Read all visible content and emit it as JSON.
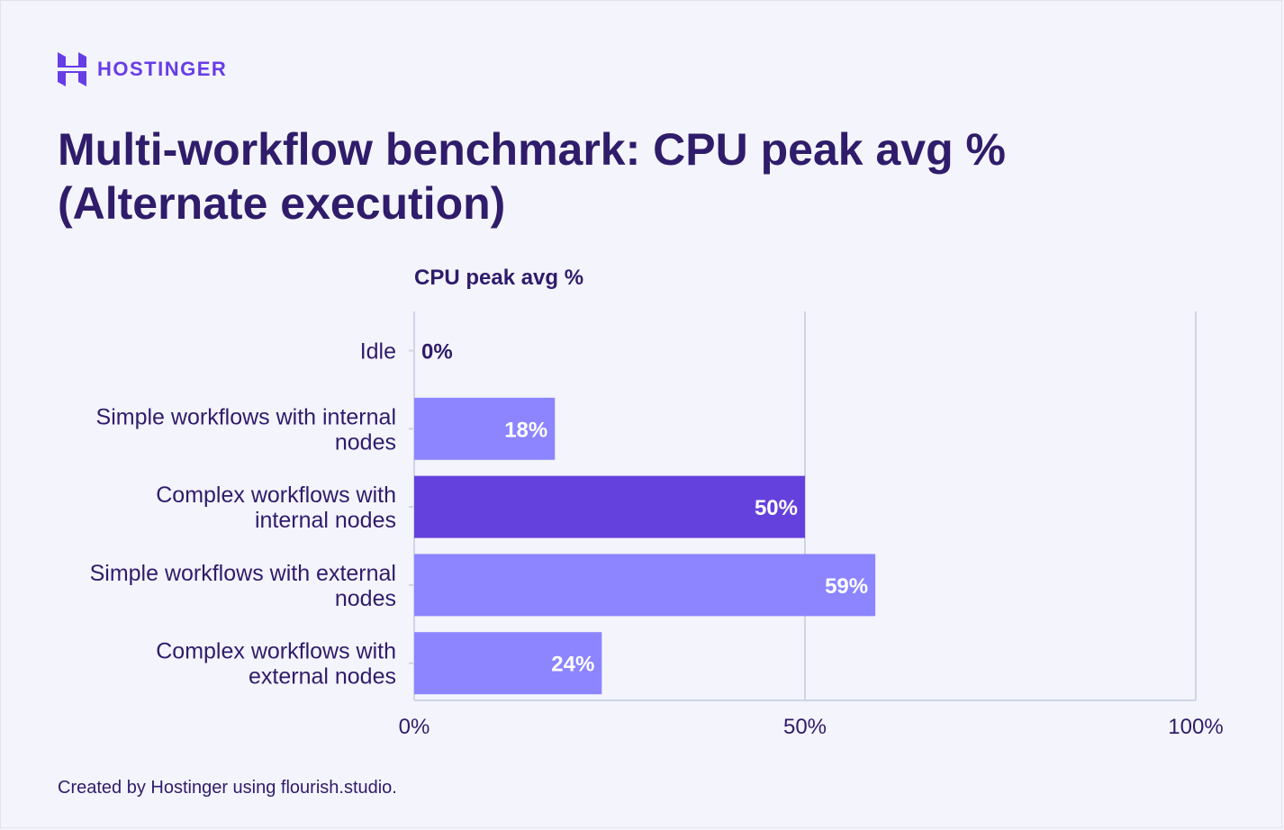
{
  "brand": {
    "name": "HOSTINGER"
  },
  "title": "Multi-workflow benchmark: CPU peak avg % (Alternate execution)",
  "footer": "Created by Hostinger using flourish.studio.",
  "colors": {
    "background": "#f4f4fd",
    "text": "#2f1c6a",
    "brand": "#673de6",
    "bar": "#8c85ff",
    "bar_highlight": "#6441dd",
    "grid": "#cfd4e6"
  },
  "chart_data": {
    "type": "bar",
    "orientation": "horizontal",
    "title": "Multi-workflow benchmark: CPU peak avg % (Alternate execution)",
    "xlabel": "CPU peak avg %",
    "categories": [
      "Idle",
      "Simple workflows with internal nodes",
      "Complex workflows with internal nodes",
      "Simple workflows with external nodes",
      "Complex workflows with external nodes"
    ],
    "category_lines": [
      [
        "Idle"
      ],
      [
        "Simple workflows with internal",
        "nodes"
      ],
      [
        "Complex workflows with",
        "internal nodes"
      ],
      [
        "Simple workflows with external",
        "nodes"
      ],
      [
        "Complex workflows with",
        "external nodes"
      ]
    ],
    "values": [
      0,
      18,
      50,
      59,
      24
    ],
    "data_labels": [
      "0%",
      "18%",
      "50%",
      "59%",
      "24%"
    ],
    "highlight_index": 2,
    "xlim": [
      0,
      100
    ],
    "xticks": [
      0,
      50,
      100
    ],
    "xtick_labels": [
      "0%",
      "50%",
      "100%"
    ],
    "grid": true
  }
}
